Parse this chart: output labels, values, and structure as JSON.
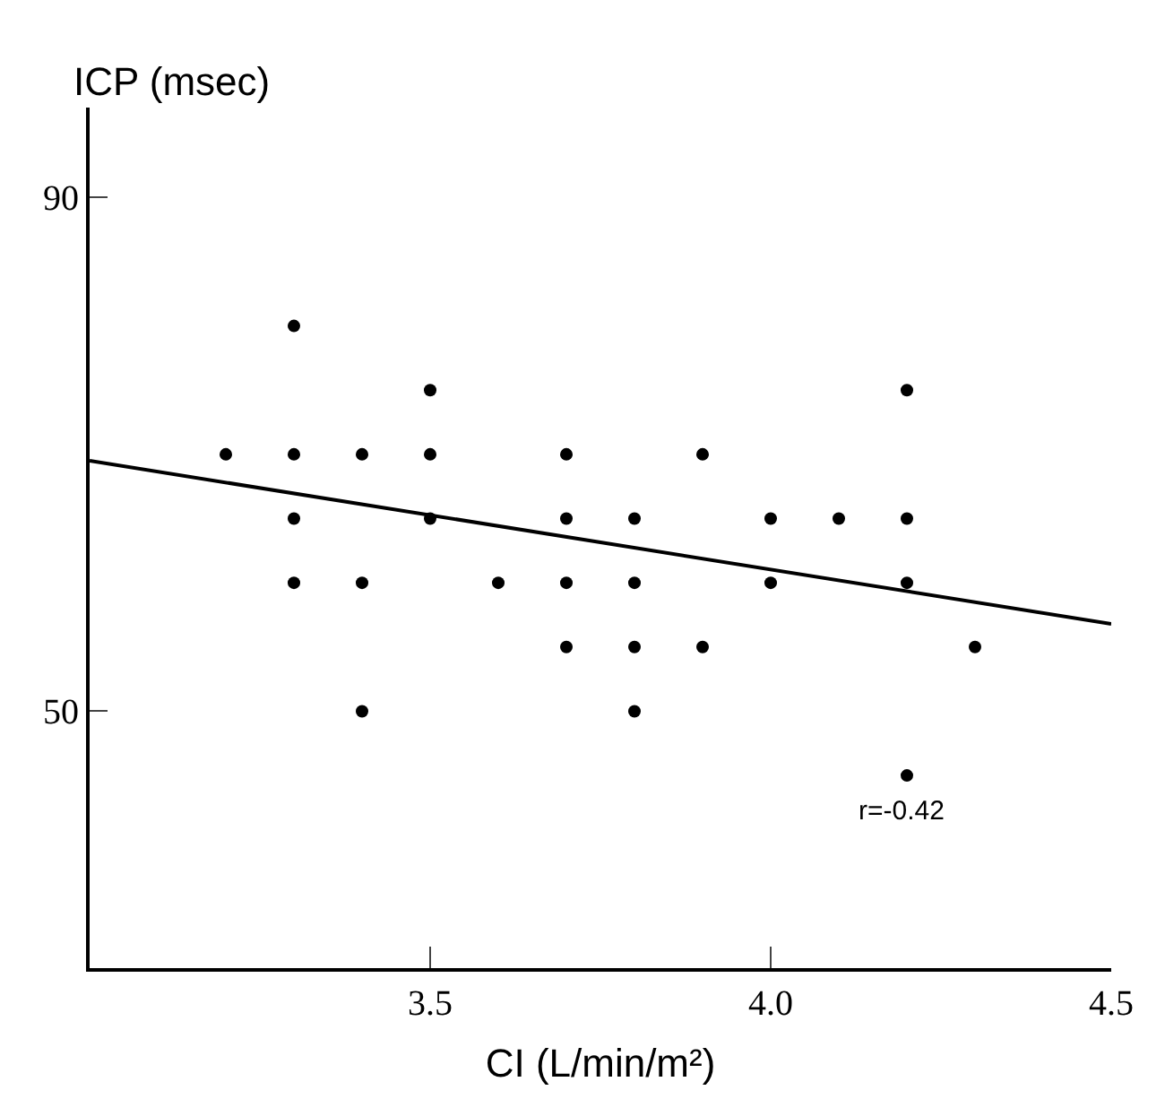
{
  "chart_data": {
    "type": "scatter",
    "xlabel": "CI (L/min/m²)",
    "ylabel": "ICP (msec)",
    "xlim": [
      3.0,
      4.5
    ],
    "xticks": [
      {
        "value": 3.5,
        "label": "3.5"
      },
      {
        "value": 4.0,
        "label": "4.0"
      },
      {
        "value": 4.5,
        "label": "4.5"
      }
    ],
    "ylim": [
      30,
      97
    ],
    "yticks": [
      50,
      90
    ],
    "series": [
      {
        "marker": "circle",
        "color": "#000000",
        "x": [
          3.2,
          3.3,
          3.3,
          3.3,
          3.3,
          3.4,
          3.4,
          3.4,
          3.5,
          3.5,
          3.5,
          3.6,
          3.7,
          3.7,
          3.7,
          3.7,
          3.8,
          3.8,
          3.8,
          3.8,
          3.9,
          3.9,
          4.0,
          4.0,
          4.1,
          4.2,
          4.2,
          4.2,
          4.2,
          4.3
        ],
        "values": [
          70,
          80,
          70,
          65,
          60,
          70,
          60,
          50,
          75,
          70,
          65,
          60,
          70,
          65,
          60,
          55,
          65,
          60,
          55,
          50,
          70,
          55,
          65,
          60,
          65,
          75,
          65,
          60,
          45,
          55
        ]
      },
      {
        "type": "line",
        "marker": "none",
        "color": "#000000",
        "x": [
          3.0,
          4.5
        ],
        "values": [
          69.5,
          56.8
        ]
      }
    ],
    "annotations": [
      "r=-0.42"
    ]
  }
}
